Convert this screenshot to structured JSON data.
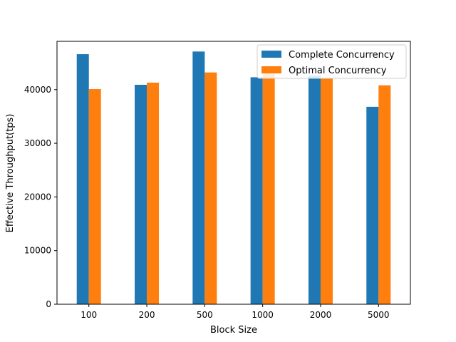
{
  "chart_data": {
    "type": "bar",
    "categories": [
      "100",
      "200",
      "500",
      "1000",
      "2000",
      "5000"
    ],
    "series": [
      {
        "name": "Complete Concurrency",
        "color": "#1f77b4",
        "values": [
          46600,
          40900,
          47100,
          42300,
          42600,
          36800
        ]
      },
      {
        "name": "Optimal Concurrency",
        "color": "#ff7f0e",
        "values": [
          40100,
          41300,
          43200,
          43200,
          42100,
          40800
        ]
      }
    ],
    "xlabel": "Block Size",
    "ylabel": "Effective Throughput(tps)",
    "ylim": [
      0,
      49000
    ],
    "yticks": [
      0,
      10000,
      20000,
      30000,
      40000
    ],
    "legend": "top-right",
    "grid": false
  }
}
